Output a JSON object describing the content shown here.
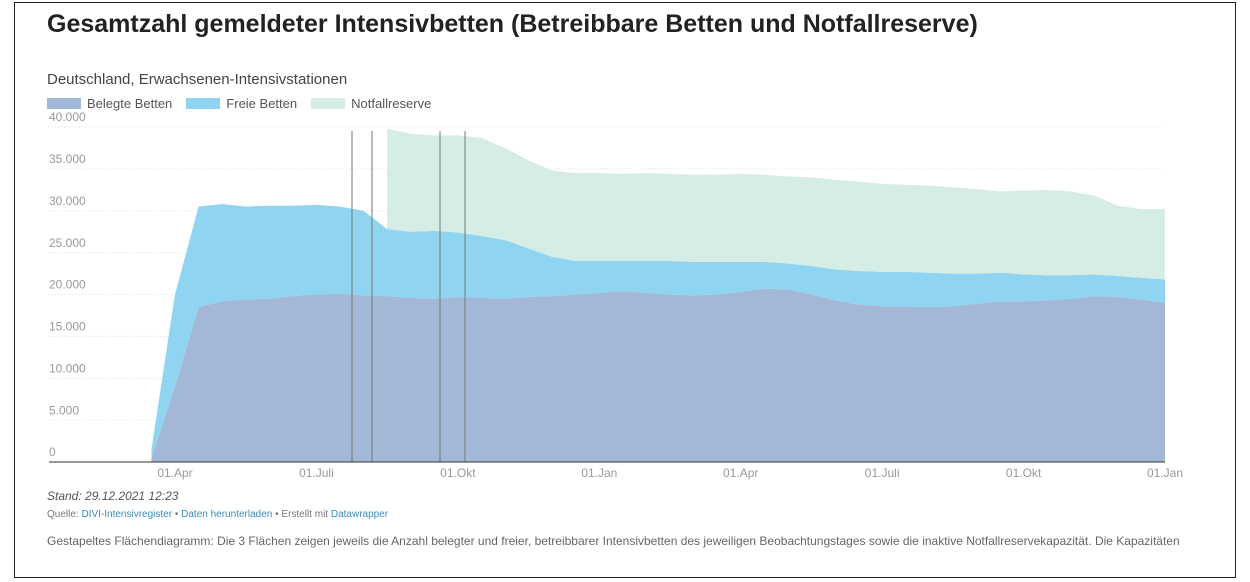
{
  "chart_data": {
    "type": "stacked-area",
    "title": "Gesamtzahl gemeldeter Intensivbetten (Betreibbare Betten und Notfallreserve)",
    "subtitle": "Deutschland, Erwachsenen-Intensivstationen",
    "categories": [
      null,
      "01.Apr",
      null,
      null,
      null,
      null,
      null,
      "01.Juli",
      null,
      null,
      null,
      null,
      null,
      "01.Okt",
      null,
      null,
      null,
      null,
      null,
      "01.Jan",
      null,
      null,
      null,
      null,
      null,
      "01.Apr",
      null,
      null,
      null,
      null,
      null,
      "01.Juli",
      null,
      null,
      null,
      null,
      null,
      "01.Okt",
      null,
      null,
      null,
      null,
      null,
      "01.Jan"
    ],
    "series": [
      {
        "name": "Belegte Betten",
        "color": "#a3b7d6",
        "values": [
          500,
          9000,
          18500,
          19200,
          19400,
          19500,
          19800,
          20000,
          20100,
          19900,
          19800,
          19600,
          19500,
          19700,
          19600,
          19500,
          19700,
          19800,
          20000,
          20200,
          20400,
          20200,
          20000,
          19900,
          20000,
          20300,
          20700,
          20600,
          20000,
          19300,
          18800,
          18600,
          18600,
          18500,
          18600,
          18900,
          19200,
          19200,
          19300,
          19500,
          19800,
          19700,
          19400,
          19000
        ]
      },
      {
        "name": "Freie Betten",
        "color": "#8fd4f0",
        "values": [
          1000,
          11000,
          12000,
          11600,
          11100,
          11100,
          10800,
          10700,
          10400,
          10100,
          8000,
          7900,
          8100,
          7700,
          7400,
          7000,
          5800,
          4700,
          4000,
          3800,
          3600,
          3800,
          4000,
          4000,
          3900,
          3600,
          3200,
          3100,
          3400,
          3700,
          4000,
          4100,
          4100,
          4100,
          3900,
          3600,
          3400,
          3200,
          3000,
          2800,
          2600,
          2500,
          2600,
          2800
        ]
      },
      {
        "name": "Notfallreserve",
        "color": "#d5ede5",
        "values": [
          null,
          null,
          null,
          null,
          null,
          null,
          null,
          null,
          null,
          null,
          12000,
          11700,
          11400,
          11600,
          11700,
          11000,
          10500,
          10300,
          10500,
          10500,
          10400,
          10500,
          10400,
          10400,
          10400,
          10500,
          10400,
          10400,
          10600,
          10700,
          10700,
          10500,
          10400,
          10400,
          10300,
          10100,
          9700,
          10000,
          10200,
          10000,
          9400,
          8400,
          8200,
          8400
        ]
      }
    ],
    "ylim": [
      0,
      40000
    ],
    "yticks": [
      0,
      {
        "value": 5000,
        "label": "5.000"
      },
      {
        "value": 10000,
        "label": "10.000"
      },
      {
        "value": 15000,
        "label": "15.000"
      },
      {
        "value": 20000,
        "label": "20.000"
      },
      {
        "value": 25000,
        "label": "25.000"
      },
      {
        "value": 30000,
        "label": "30.000"
      },
      {
        "value": 35000,
        "label": "35.000"
      },
      {
        "value": 40000,
        "label": "40.000"
      }
    ],
    "grid": true,
    "stand": "Stand: 29.12.2021 12:23",
    "source": [
      "Quelle:",
      "DIVI-Intensivregister",
      "•",
      "Daten herunterladen",
      "•",
      "Erstellt mit",
      "Datawrapper"
    ],
    "description": "Gestapeltes Flächendiagramm: Die 3 Flächen zeigen jeweils die Anzahl belegter und freier, betreibbarer Intensivbetten des jeweiligen Beobachtungstages sowie die inaktive Notfallreservekapazität. Die Kapazitäten"
  }
}
